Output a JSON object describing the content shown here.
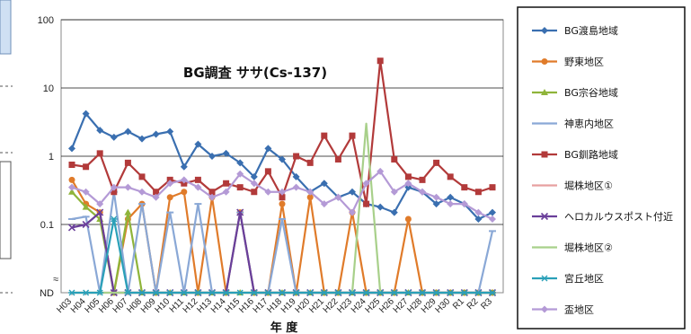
{
  "chart_data": {
    "type": "line",
    "title": "BG調査 ササ(Cs-137)",
    "xlabel": "年 度",
    "ylabel": "",
    "y_scale": "log",
    "y_ticks": [
      "ND",
      "0.1",
      "1",
      "10",
      "100"
    ],
    "y_tick_values": [
      0.01,
      0.1,
      1,
      10,
      100
    ],
    "ylim": [
      0.01,
      100
    ],
    "x": [
      "H03",
      "H04",
      "H05",
      "H06",
      "H07",
      "H08",
      "H09",
      "H10",
      "H11",
      "H12",
      "H13",
      "H14",
      "H15",
      "H16",
      "H17",
      "H18",
      "H19",
      "H20",
      "H21",
      "H22",
      "H23",
      "H24",
      "H25",
      "H26",
      "H27",
      "H28",
      "H29",
      "H30",
      "R1",
      "R2",
      "R3"
    ],
    "x_tick_step": 1,
    "grid": true,
    "legend_position": "right",
    "nd_value": 0.01,
    "series": [
      {
        "name": "BG渡島地域",
        "color": "#3a6fb0",
        "marker": "diamond",
        "values": [
          1.3,
          4.2,
          2.4,
          1.9,
          2.3,
          1.8,
          2.1,
          2.3,
          0.7,
          1.5,
          1.0,
          1.1,
          0.8,
          0.5,
          1.3,
          0.9,
          0.5,
          0.3,
          0.4,
          0.25,
          0.3,
          0.2,
          0.18,
          0.15,
          0.35,
          0.3,
          0.2,
          0.25,
          0.2,
          0.12,
          0.15
        ]
      },
      {
        "name": "野東地区",
        "color": "#e07b2a",
        "marker": "circle",
        "values": [
          0.45,
          0.2,
          0.15,
          0.01,
          0.12,
          0.2,
          0.01,
          0.25,
          0.3,
          0.01,
          0.25,
          0.01,
          0.15,
          0.01,
          0.01,
          0.2,
          0.01,
          0.25,
          0.01,
          0.01,
          0.15,
          0.01,
          0.01,
          0.01,
          0.12,
          0.01,
          0.01,
          0.01,
          0.01,
          0.01,
          0.01
        ]
      },
      {
        "name": "BG宗谷地域",
        "color": "#8fb43a",
        "marker": "triangle",
        "values": [
          0.3,
          0.18,
          0.12,
          0.01,
          0.15,
          0.01,
          0.01,
          0.01,
          0.01,
          0.01,
          0.01,
          0.01,
          0.01,
          0.01,
          0.01,
          0.01,
          0.01,
          0.01,
          0.01,
          0.01,
          0.01,
          0.01,
          0.01,
          0.01,
          0.01,
          0.01,
          0.01,
          0.01,
          0.01,
          0.01,
          0.01
        ]
      },
      {
        "name": "神恵内地区",
        "color": "#8aa8d6",
        "marker": "dash",
        "values": [
          0.12,
          0.13,
          0.01,
          0.3,
          0.01,
          0.2,
          0.01,
          0.15,
          0.01,
          0.2,
          0.01,
          0.01,
          0.15,
          0.01,
          0.01,
          0.12,
          0.01,
          0.01,
          0.01,
          0.01,
          0.01,
          0.01,
          0.01,
          0.01,
          0.01,
          0.01,
          0.01,
          0.01,
          0.01,
          0.01,
          0.08
        ]
      },
      {
        "name": "BG釧路地域",
        "color": "#b23a3a",
        "marker": "square",
        "values": [
          0.75,
          0.7,
          1.1,
          0.3,
          0.8,
          0.5,
          0.3,
          0.45,
          0.4,
          0.45,
          0.3,
          0.4,
          0.35,
          0.3,
          0.6,
          0.25,
          1.0,
          0.8,
          2.0,
          0.9,
          2.0,
          0.2,
          25.0,
          0.9,
          0.5,
          0.45,
          0.8,
          0.5,
          0.35,
          0.3,
          0.35
        ]
      },
      {
        "name": "堀株地区①",
        "color": "#e8a0a0",
        "marker": "none",
        "values": [
          0.01,
          0.01,
          0.01,
          0.01,
          0.01,
          0.01,
          0.01,
          0.01,
          0.01,
          0.01,
          0.01,
          0.01,
          0.01,
          0.01,
          0.01,
          0.01,
          0.01,
          0.01,
          0.01,
          0.01,
          0.01,
          0.01,
          0.01,
          0.01,
          0.01,
          0.01,
          0.01,
          0.01,
          0.01,
          0.01,
          0.01
        ]
      },
      {
        "name": "ヘロカルウスポスト付近",
        "color": "#6a3f9a",
        "marker": "x",
        "values": [
          0.09,
          0.1,
          0.15,
          0.01,
          0.01,
          0.01,
          0.01,
          0.01,
          0.01,
          0.01,
          0.01,
          0.01,
          0.15,
          0.01,
          0.01,
          0.01,
          0.01,
          0.01,
          0.01,
          0.01,
          0.01,
          0.01,
          0.01,
          0.01,
          0.01,
          0.01,
          0.01,
          0.01,
          0.01,
          0.01,
          0.01
        ]
      },
      {
        "name": "堀株地区②",
        "color": "#a8d08a",
        "marker": "none",
        "values": [
          0.01,
          0.01,
          0.01,
          0.01,
          0.01,
          0.01,
          0.01,
          0.01,
          0.01,
          0.01,
          0.01,
          0.01,
          0.01,
          0.01,
          0.01,
          0.01,
          0.01,
          0.01,
          0.01,
          0.01,
          0.01,
          3.0,
          0.01,
          0.01,
          0.01,
          0.01,
          0.01,
          0.01,
          0.01,
          0.01,
          0.01
        ]
      },
      {
        "name": "宮丘地区",
        "color": "#2aa0b8",
        "marker": "asterisk",
        "values": [
          0.01,
          0.01,
          0.01,
          0.12,
          0.01,
          0.01,
          0.01,
          0.01,
          0.01,
          0.01,
          0.01,
          0.01,
          0.01,
          0.01,
          0.01,
          0.01,
          0.01,
          0.01,
          0.01,
          0.01,
          0.01,
          0.01,
          0.01,
          0.01,
          0.01,
          0.01,
          0.01,
          0.01,
          0.01,
          0.01,
          0.01
        ]
      },
      {
        "name": "盃地区",
        "color": "#b49ad6",
        "marker": "diamond",
        "values": [
          0.35,
          0.3,
          0.2,
          0.35,
          0.35,
          0.3,
          0.25,
          0.4,
          0.45,
          0.35,
          0.25,
          0.3,
          0.55,
          0.4,
          0.3,
          0.3,
          0.35,
          0.3,
          0.2,
          0.25,
          0.15,
          0.4,
          0.6,
          0.3,
          0.4,
          0.3,
          0.25,
          0.2,
          0.2,
          0.15,
          0.12
        ]
      }
    ]
  }
}
